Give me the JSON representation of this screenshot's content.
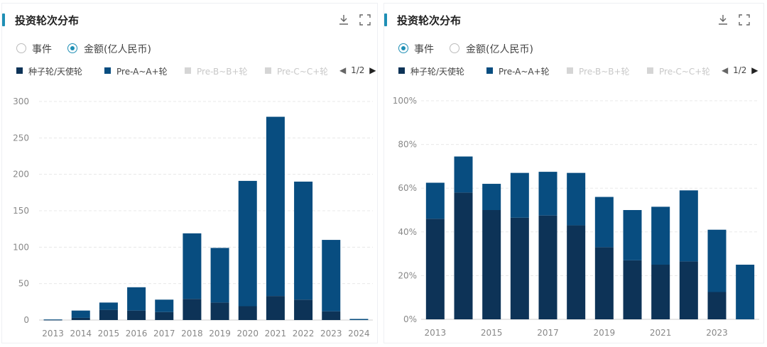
{
  "colors": {
    "accent": "#1f8fb5",
    "series_seed": "#0d3357",
    "series_a": "#084d80",
    "series_inactive": "#d5d5d5",
    "grid": "#e8e8e8"
  },
  "panels": [
    {
      "title": "投资轮次分布",
      "radio": [
        {
          "label": "事件",
          "selected": false
        },
        {
          "label": "金额(亿人民币)",
          "selected": true
        }
      ],
      "legend": [
        {
          "label": "种子轮/天使轮",
          "active": true
        },
        {
          "label": "Pre-A~A+轮",
          "active": true
        },
        {
          "label": "Pre-B~B+轮",
          "active": false
        },
        {
          "label": "Pre-C~C+轮",
          "active": false
        }
      ],
      "pager": "1/2"
    },
    {
      "title": "投资轮次分布",
      "radio": [
        {
          "label": "事件",
          "selected": true
        },
        {
          "label": "金额(亿人民币)",
          "selected": false
        }
      ],
      "legend": [
        {
          "label": "种子轮/天使轮",
          "active": true
        },
        {
          "label": "Pre-A~A+轮",
          "active": true
        },
        {
          "label": "Pre-B~B+轮",
          "active": false
        },
        {
          "label": "Pre-C~C+轮",
          "active": false
        }
      ],
      "pager": "1/2"
    }
  ],
  "chart_data": [
    {
      "type": "bar",
      "stacked": true,
      "categories": [
        "2013",
        "2014",
        "2015",
        "2016",
        "2017",
        "2018",
        "2019",
        "2020",
        "2021",
        "2022",
        "2023",
        "2024"
      ],
      "series": [
        {
          "name": "种子轮/天使轮",
          "values": [
            0.3,
            3,
            14,
            13,
            11,
            29,
            24,
            19,
            33,
            28,
            12,
            0
          ]
        },
        {
          "name": "Pre-A~A+轮",
          "values": [
            0.5,
            10,
            10,
            32,
            17,
            90,
            75,
            172,
            246,
            162,
            98,
            1.5
          ]
        }
      ],
      "ylim": [
        0,
        300
      ],
      "yticks": [
        "0",
        "50",
        "100",
        "150",
        "200",
        "250",
        "300"
      ],
      "grid": true
    },
    {
      "type": "bar",
      "stacked": true,
      "categories": [
        "2013",
        "2014",
        "2015",
        "2016",
        "2017",
        "2018",
        "2019",
        "2020",
        "2021",
        "2022",
        "2023",
        "2024"
      ],
      "x_tick_labels": [
        "2013",
        "",
        "2015",
        "",
        "2017",
        "",
        "2019",
        "",
        "2021",
        "",
        "2023",
        ""
      ],
      "series": [
        {
          "name": "种子轮/天使轮",
          "values": [
            46,
            58,
            50,
            46.5,
            47.5,
            43,
            33,
            27,
            25,
            26.5,
            12.5,
            0
          ]
        },
        {
          "name": "Pre-A~A+轮",
          "values": [
            16.5,
            16.5,
            12,
            20.5,
            20,
            24,
            23,
            23,
            26.5,
            32.5,
            28.5,
            25
          ]
        }
      ],
      "ylim": [
        0,
        100
      ],
      "yticks": [
        "0%",
        "20%",
        "40%",
        "60%",
        "80%",
        "100%"
      ],
      "grid": true
    }
  ]
}
